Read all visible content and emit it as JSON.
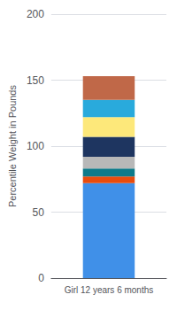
{
  "chart_data": {
    "type": "bar",
    "stacked": true,
    "categories": [
      "Girl 12 years 6 months"
    ],
    "ylabel": "Percentile Weight in Pounds",
    "series": [
      {
        "color": "#4090e8",
        "values": [
          72
        ]
      },
      {
        "color": "#e84c0e",
        "values": [
          5
        ]
      },
      {
        "color": "#0d7a8a",
        "values": [
          6
        ]
      },
      {
        "color": "#b8b8b8",
        "values": [
          9
        ]
      },
      {
        "color": "#1e3560",
        "values": [
          15
        ]
      },
      {
        "color": "#fde87a",
        "values": [
          15
        ]
      },
      {
        "color": "#29aadc",
        "values": [
          13
        ]
      },
      {
        "color": "#c06848",
        "values": [
          18
        ]
      }
    ],
    "ylim": [
      0,
      200
    ],
    "yticks": [
      0,
      50,
      100,
      150,
      200
    ],
    "grid": true
  }
}
